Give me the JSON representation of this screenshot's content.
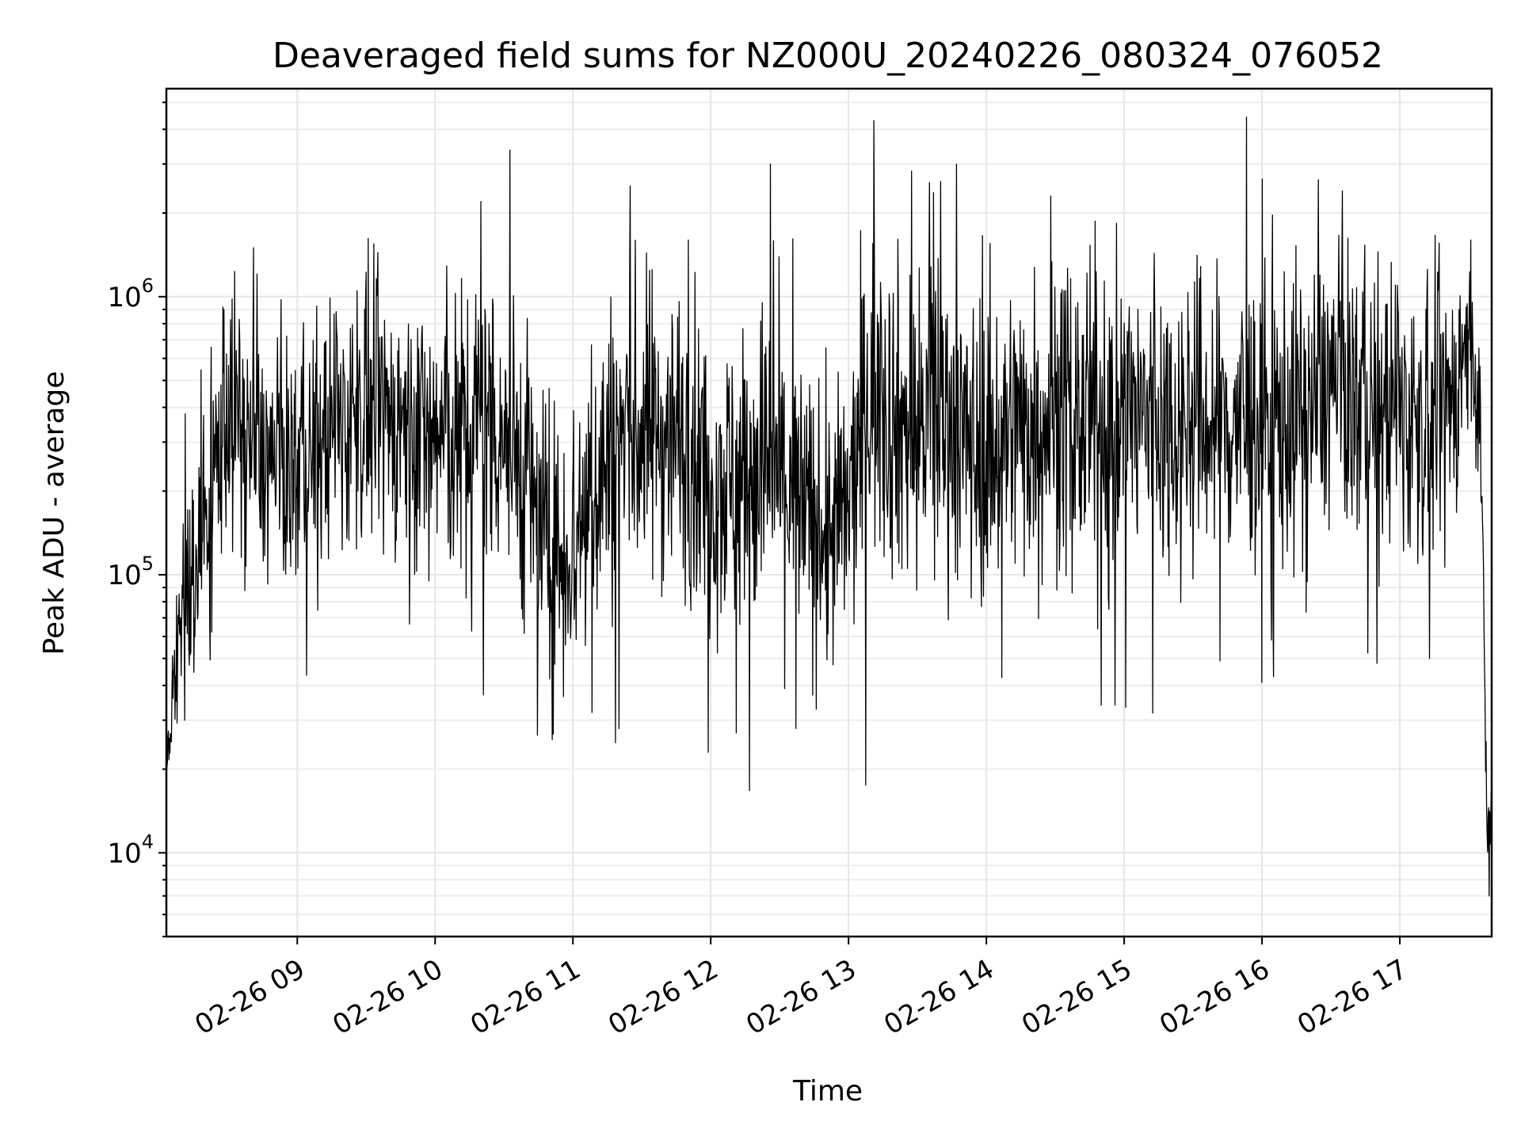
{
  "chart_data": {
    "type": "line",
    "title": "Deaveraged field sums for NZ000U_20240226_080324_076052",
    "xlabel": "Time",
    "ylabel": "Peak ADU - average",
    "yscale": "log",
    "ylim": [
      5000,
      5600000
    ],
    "xlim": [
      "2024-02-26 08:03",
      "2024-02-26 17:40"
    ],
    "grid": true,
    "x_ticks": [
      "02-26 09",
      "02-26 10",
      "02-26 11",
      "02-26 12",
      "02-26 13",
      "02-26 14",
      "02-26 15",
      "02-26 16",
      "02-26 17"
    ],
    "x_tick_times": [
      "2024-02-26 09:00",
      "2024-02-26 10:00",
      "2024-02-26 11:00",
      "2024-02-26 12:00",
      "2024-02-26 13:00",
      "2024-02-26 14:00",
      "2024-02-26 15:00",
      "2024-02-26 16:00",
      "2024-02-26 17:00"
    ],
    "y_ticks": [
      {
        "value": 10000,
        "base": "10",
        "exp": "4"
      },
      {
        "value": 100000,
        "base": "10",
        "exp": "5"
      },
      {
        "value": 1000000,
        "base": "10",
        "exp": "6"
      }
    ],
    "series": [
      {
        "color": "#000000",
        "x": [
          "2024-02-26 08:03",
          "2024-02-26 08:05",
          "2024-02-26 08:08",
          "2024-02-26 08:12",
          "2024-02-26 08:17",
          "2024-02-26 08:22",
          "2024-02-26 08:26",
          "2024-02-26 08:30",
          "2024-02-26 08:34",
          "2024-02-26 08:38",
          "2024-02-26 08:42",
          "2024-02-26 08:46",
          "2024-02-26 08:50",
          "2024-02-26 08:54",
          "2024-02-26 09:00",
          "2024-02-26 09:10",
          "2024-02-26 09:20",
          "2024-02-26 09:30",
          "2024-02-26 09:40",
          "2024-02-26 09:50",
          "2024-02-26 10:00",
          "2024-02-26 10:10",
          "2024-02-26 10:20",
          "2024-02-26 10:30",
          "2024-02-26 10:40",
          "2024-02-26 10:50",
          "2024-02-26 11:00",
          "2024-02-26 11:10",
          "2024-02-26 11:20",
          "2024-02-26 11:30",
          "2024-02-26 11:40",
          "2024-02-26 11:50",
          "2024-02-26 12:00",
          "2024-02-26 12:10",
          "2024-02-26 12:20",
          "2024-02-26 12:30",
          "2024-02-26 12:40",
          "2024-02-26 12:50",
          "2024-02-26 13:00",
          "2024-02-26 13:10",
          "2024-02-26 13:20",
          "2024-02-26 13:30",
          "2024-02-26 13:40",
          "2024-02-26 13:50",
          "2024-02-26 14:00",
          "2024-02-26 14:10",
          "2024-02-26 14:20",
          "2024-02-26 14:30",
          "2024-02-26 14:40",
          "2024-02-26 14:50",
          "2024-02-26 15:00",
          "2024-02-26 15:10",
          "2024-02-26 15:20",
          "2024-02-26 15:30",
          "2024-02-26 15:40",
          "2024-02-26 15:50",
          "2024-02-26 16:00",
          "2024-02-26 16:10",
          "2024-02-26 16:20",
          "2024-02-26 16:30",
          "2024-02-26 16:40",
          "2024-02-26 16:50",
          "2024-02-26 17:00",
          "2024-02-26 17:10",
          "2024-02-26 17:20",
          "2024-02-26 17:30",
          "2024-02-26 17:35",
          "2024-02-26 17:38",
          "2024-02-26 17:40"
        ],
        "values": [
          20000,
          30000,
          60000,
          90000,
          120000,
          180000,
          300000,
          400000,
          350000,
          320000,
          280000,
          260000,
          250000,
          240000,
          250000,
          300000,
          350000,
          380000,
          360000,
          340000,
          320000,
          300000,
          380000,
          330000,
          220000,
          110000,
          130000,
          220000,
          300000,
          330000,
          330000,
          300000,
          230000,
          210000,
          260000,
          230000,
          170000,
          130000,
          170000,
          500000,
          360000,
          330000,
          420000,
          300000,
          280000,
          330000,
          360000,
          390000,
          350000,
          330000,
          380000,
          370000,
          350000,
          360000,
          340000,
          350000,
          360000,
          360000,
          380000,
          500000,
          430000,
          410000,
          380000,
          350000,
          360000,
          700000,
          400000,
          12000,
          15000
        ],
        "spread": [
          0.05,
          0.25,
          0.3,
          0.45,
          0.5,
          0.5,
          0.55,
          0.6,
          0.6,
          0.55,
          0.55,
          0.55,
          0.55,
          0.55,
          0.55,
          0.6,
          0.6,
          0.6,
          0.6,
          0.6,
          0.65,
          0.7,
          0.7,
          0.7,
          0.7,
          0.65,
          0.7,
          0.75,
          0.75,
          0.75,
          0.7,
          0.7,
          0.7,
          0.7,
          0.75,
          0.75,
          0.7,
          0.65,
          0.65,
          0.75,
          0.75,
          0.75,
          0.75,
          0.7,
          0.7,
          0.7,
          0.7,
          0.7,
          0.7,
          0.7,
          0.7,
          0.7,
          0.7,
          0.7,
          0.7,
          0.7,
          0.7,
          0.7,
          0.7,
          0.65,
          0.65,
          0.65,
          0.65,
          0.65,
          0.65,
          0.45,
          0.3,
          0.2,
          0.1
        ],
        "peaks": [
          {
            "x": "2024-02-26 08:11",
            "value": 30000
          },
          {
            "x": "2024-02-26 08:28",
            "value": 900000
          },
          {
            "x": "2024-02-26 08:41",
            "value": 1500000
          },
          {
            "x": "2024-02-26 09:26",
            "value": 1050000
          },
          {
            "x": "2024-02-26 10:20",
            "value": 2200000
          },
          {
            "x": "2024-02-26 10:21",
            "value": 37000
          },
          {
            "x": "2024-02-26 11:20",
            "value": 28000
          },
          {
            "x": "2024-02-26 11:25",
            "value": 2500000
          },
          {
            "x": "2024-02-26 11:59",
            "value": 23000
          },
          {
            "x": "2024-02-26 12:11",
            "value": 27000
          },
          {
            "x": "2024-02-26 12:26",
            "value": 3000000
          },
          {
            "x": "2024-02-26 12:37",
            "value": 28000
          },
          {
            "x": "2024-02-26 13:11",
            "value": 4300000
          },
          {
            "x": "2024-02-26 13:40",
            "value": 2600000
          },
          {
            "x": "2024-02-26 13:47",
            "value": 3000000
          },
          {
            "x": "2024-02-26 14:28",
            "value": 2300000
          },
          {
            "x": "2024-02-26 14:50",
            "value": 34000
          },
          {
            "x": "2024-02-26 14:56",
            "value": 34000
          },
          {
            "x": "2024-02-26 16:00",
            "value": 41000
          },
          {
            "x": "2024-02-26 16:05",
            "value": 43000
          },
          {
            "x": "2024-02-26 16:50",
            "value": 48000
          },
          {
            "x": "2024-02-26 17:13",
            "value": 50000
          },
          {
            "x": "2024-02-26 17:31",
            "value": 1600000
          },
          {
            "x": "2024-02-26 17:39",
            "value": 7000
          }
        ]
      }
    ]
  }
}
